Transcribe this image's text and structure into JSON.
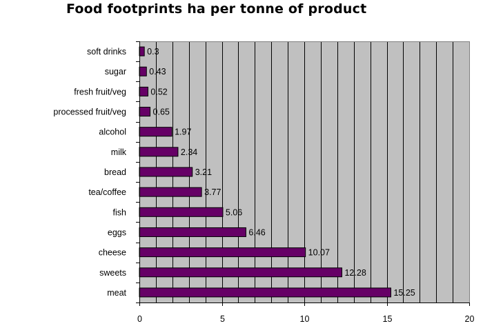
{
  "chart_data": {
    "type": "bar",
    "orientation": "horizontal",
    "title": "Food footprints ha per tonne of product",
    "xlabel": "",
    "ylabel": "",
    "xlim": [
      0,
      20
    ],
    "x_ticks": [
      0,
      5,
      10,
      15,
      20
    ],
    "grid": true,
    "legend": "none",
    "categories": [
      "soft drinks",
      "sugar",
      "fresh fruit/veg",
      "processed fruit/veg",
      "alcohol",
      "milk",
      "bread",
      "tea/coffee",
      "fish",
      "eggs",
      "cheese",
      "sweets",
      "meat"
    ],
    "values": [
      0.3,
      0.43,
      0.52,
      0.65,
      1.97,
      2.34,
      3.21,
      3.77,
      5.06,
      6.46,
      10.07,
      12.28,
      15.25
    ],
    "value_labels": [
      "0.3",
      "0.43",
      "0.52",
      "0.65",
      "1.97",
      "2.34",
      "3.21",
      "3.77",
      "5.06",
      "6.46",
      "10.07",
      "12.28",
      "15.25"
    ],
    "colors": {
      "bar_fill": "#660066",
      "plot_background": "#c0c0c0",
      "grid": "#000000"
    }
  }
}
